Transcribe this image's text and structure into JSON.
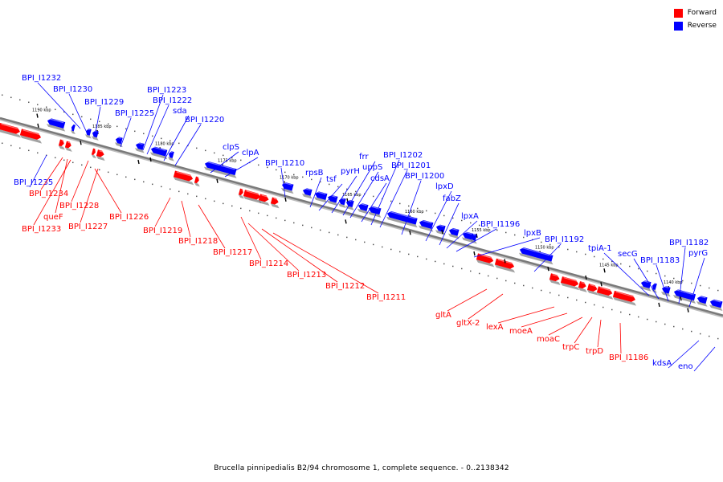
{
  "legend": [
    {
      "label": "Forward",
      "color": "#ff0000"
    },
    {
      "label": "Reverse",
      "color": "#0000ff"
    }
  ],
  "footer_caption": "Brucella pinnipedialis B2/94 chromosome 1, complete sequence. - 0..2138342",
  "colors": {
    "forward": "#ff0000",
    "reverse": "#0000ff",
    "backbone": "#7a7a7a"
  },
  "ticks": [
    "1190 kbp",
    "1185 kbp",
    "1180 kbp",
    "1175 kbp",
    "1170 kbp",
    "1165 kbp",
    "1160 kbp",
    "1155 kbp",
    "1150 kbp",
    "1145 kbp",
    "1140 kbp"
  ],
  "genes_reverse": [
    "BPI_I1232",
    "BPI_I1230",
    "BPI_I1229",
    "BPI_I1225",
    "BPI_I1223",
    "BPI_I1222",
    "sda",
    "BPI_I1220",
    "clpS",
    "clpA",
    "BPI_I1210",
    "rpsB",
    "tsf",
    "pyrH",
    "frr",
    "uppS",
    "cdsA",
    "BPI_I1202",
    "BPI_I1201",
    "BPI_I1200",
    "lpxD",
    "fabZ",
    "lpxA",
    "BPI_I1196",
    "lpxB",
    "BPI_I1192",
    "tpiA-1",
    "secG",
    "BPI_I1183",
    "BPI_I1182",
    "pyrG",
    "BPI_I1235",
    "kdsA",
    "eno"
  ],
  "genes_forward": [
    "BPI_I1234",
    "queF",
    "BPI_I1233",
    "BPI_I1228",
    "BPI_I1227",
    "BPI_I1226",
    "BPI_I1219",
    "BPI_I1218",
    "BPI_I1217",
    "BPI_I1214",
    "BPI_I1213",
    "BPI_I1212",
    "BPI_I1211",
    "gltA",
    "gltX-2",
    "lexA",
    "moeA",
    "moaC",
    "trpC",
    "trpD",
    "BPI_I1186"
  ]
}
